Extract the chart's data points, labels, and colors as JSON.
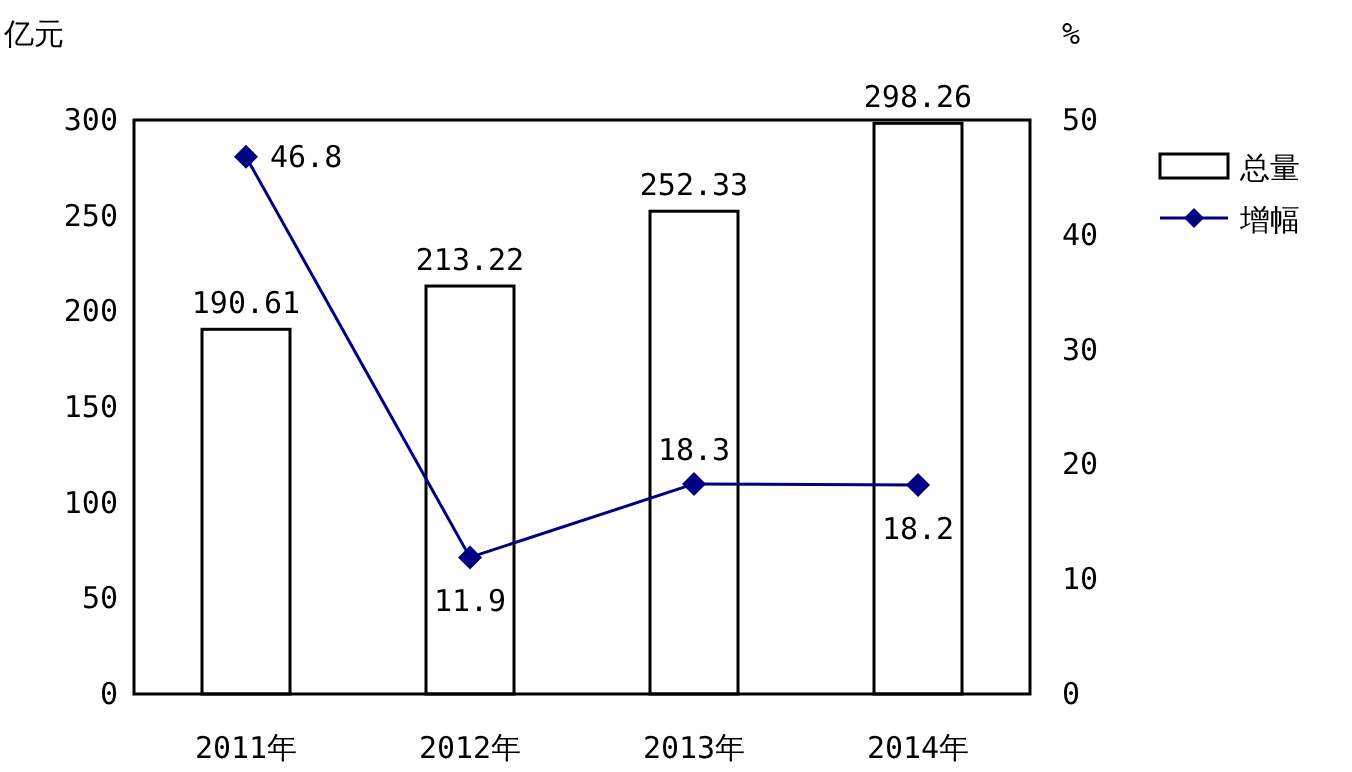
{
  "chart_data": {
    "type": "bar",
    "categories": [
      "2011年",
      "2012年",
      "2013年",
      "2014年"
    ],
    "ylabel": "亿元",
    "y2label": "%",
    "ylim": [
      0,
      300
    ],
    "yticks": [
      0,
      50,
      100,
      150,
      200,
      250,
      300
    ],
    "y2lim": [
      0,
      50
    ],
    "y2ticks": [
      0,
      10,
      20,
      30,
      40,
      50
    ],
    "grid": false,
    "legend": "right",
    "data_labels": true,
    "series": [
      {
        "name": "总量",
        "color": "#ffffff",
        "values": [
          190.61,
          213.22,
          252.33,
          298.26
        ]
      },
      {
        "name": "增幅",
        "type": "line",
        "axis": "y2",
        "color": "#000080",
        "marker": "diamond",
        "values": [
          46.8,
          11.9,
          18.3,
          18.2
        ]
      }
    ]
  }
}
